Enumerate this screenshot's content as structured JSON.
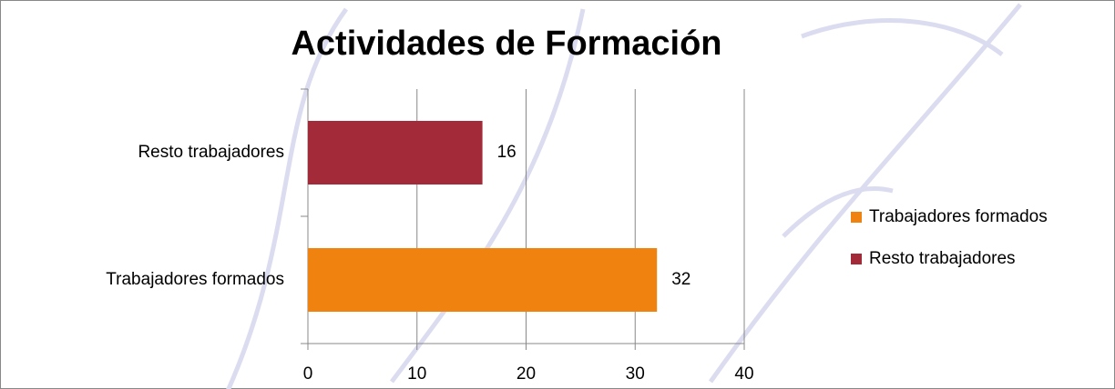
{
  "chart_data": {
    "type": "bar",
    "orientation": "horizontal",
    "title": "Actividades de Formación",
    "categories": [
      "Trabajadores formados",
      "Resto trabajadores"
    ],
    "values": [
      32,
      16
    ],
    "colors": [
      "#f0820f",
      "#a32a38"
    ],
    "xlim": [
      0,
      40
    ],
    "xticks": [
      0,
      10,
      20,
      30,
      40
    ],
    "grid": true,
    "legend": "right"
  }
}
